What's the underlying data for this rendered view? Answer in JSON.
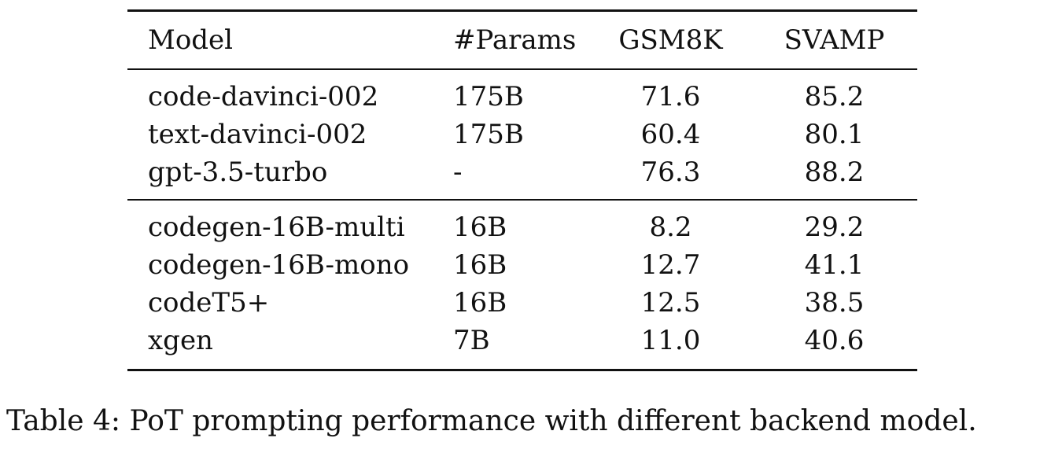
{
  "table": {
    "columns": [
      "Model",
      "#Params",
      "GSM8K",
      "SVAMP"
    ],
    "group1": [
      {
        "model": "code-davinci-002",
        "params": "175B",
        "gsm8k": "71.6",
        "svamp": "85.2"
      },
      {
        "model": "text-davinci-002",
        "params": "175B",
        "gsm8k": "60.4",
        "svamp": "80.1"
      },
      {
        "model": "gpt-3.5-turbo",
        "params": "-",
        "gsm8k": "76.3",
        "svamp": "88.2"
      }
    ],
    "group2": [
      {
        "model": "codegen-16B-multi",
        "params": "16B",
        "gsm8k": "8.2",
        "svamp": "29.2"
      },
      {
        "model": "codegen-16B-mono",
        "params": "16B",
        "gsm8k": "12.7",
        "svamp": "41.1"
      },
      {
        "model": "codeT5+",
        "params": "16B",
        "gsm8k": "12.5",
        "svamp": "38.5"
      },
      {
        "model": "xgen",
        "params": "7B",
        "gsm8k": "11.0",
        "svamp": "40.6"
      }
    ]
  },
  "caption": "Table 4: PoT prompting performance with different backend model."
}
